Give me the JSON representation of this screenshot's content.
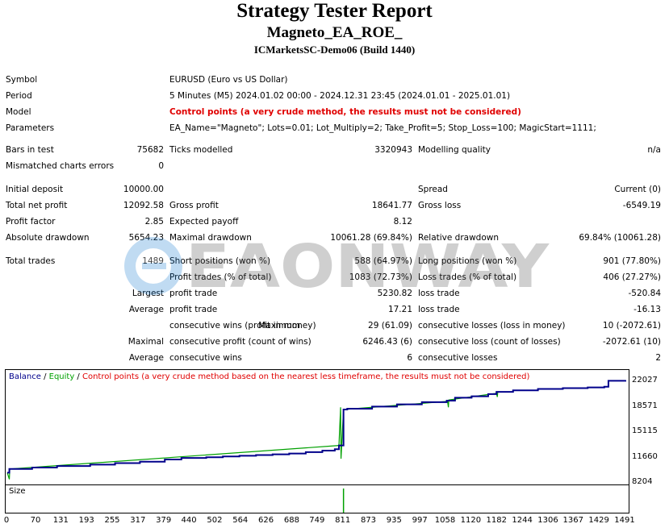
{
  "report": {
    "title": "Strategy Tester Report",
    "ea_name": "Magneto_EA_ROE_",
    "account": "ICMarketsSC-Demo06 (Build 1440)"
  },
  "settings": {
    "symbol_label": "Symbol",
    "symbol_value": "EURUSD (Euro vs US Dollar)",
    "period_label": "Period",
    "period_value": "5 Minutes (M5) 2024.01.02 00:00 - 2024.12.31 23:45 (2024.01.01 - 2025.01.01)",
    "model_label": "Model",
    "model_value": "Control points (a very crude method, the results must not be considered)",
    "parameters_label": "Parameters",
    "parameters_value": "EA_Name=\"Magneto\"; Lots=0.01; Lot_Multiply=2; Take_Profit=5; Stop_Loss=100; MagicStart=1111;"
  },
  "results": {
    "bars_in_test_label": "Bars in test",
    "bars_in_test": "75682",
    "ticks_modelled_label": "Ticks modelled",
    "ticks_modelled": "3320943",
    "modelling_quality_label": "Modelling quality",
    "modelling_quality": "n/a",
    "mismatched_label": "Mismatched charts errors",
    "mismatched": "0",
    "initial_deposit_label": "Initial deposit",
    "initial_deposit": "10000.00",
    "spread_label": "Spread",
    "spread": "Current (0)",
    "total_net_profit_label": "Total net profit",
    "total_net_profit": "12092.58",
    "gross_profit_label": "Gross profit",
    "gross_profit": "18641.77",
    "gross_loss_label": "Gross loss",
    "gross_loss": "-6549.19",
    "profit_factor_label": "Profit factor",
    "profit_factor": "2.85",
    "expected_payoff_label": "Expected payoff",
    "expected_payoff": "8.12",
    "absolute_drawdown_label": "Absolute drawdown",
    "absolute_drawdown": "5654.23",
    "maximal_drawdown_label": "Maximal drawdown",
    "maximal_drawdown": "10061.28 (69.84%)",
    "relative_drawdown_label": "Relative drawdown",
    "relative_drawdown": "69.84% (10061.28)",
    "total_trades_label": "Total trades",
    "total_trades": "1489",
    "short_positions_label": "Short positions (won %)",
    "short_positions": "588 (64.97%)",
    "long_positions_label": "Long positions (won %)",
    "long_positions": "901 (77.80%)",
    "profit_trades_label": "Profit trades (% of total)",
    "profit_trades": "1083 (72.73%)",
    "loss_trades_label": "Loss trades (% of total)",
    "loss_trades": "406 (27.27%)",
    "largest_label": "Largest",
    "largest_profit_label": "profit trade",
    "largest_profit": "5230.82",
    "largest_loss_label": "loss trade",
    "largest_loss": "-520.84",
    "average_label": "Average",
    "average_profit_label": "profit trade",
    "average_profit": "17.21",
    "average_loss_label": "loss trade",
    "average_loss": "-16.13",
    "maximum_label": "Maximum",
    "max_cons_wins_label": "consecutive wins (profit in money)",
    "max_cons_wins": "29 (61.09)",
    "max_cons_losses_label": "consecutive losses (loss in money)",
    "max_cons_losses": "10 (-2072.61)",
    "maximal_label": "Maximal",
    "maximal_cons_profit_label": "consecutive profit (count of wins)",
    "maximal_cons_profit": "6246.43 (6)",
    "maximal_cons_loss_label": "consecutive loss (count of losses)",
    "maximal_cons_loss": "-2072.61 (10)",
    "average2_label": "Average",
    "avg_cons_wins_label": "consecutive wins",
    "avg_cons_wins": "6",
    "avg_cons_losses_label": "consecutive losses",
    "avg_cons_losses": "2"
  },
  "watermark": "EAONWAY",
  "chart": {
    "legend_balance": "Balance",
    "legend_sep1": " / ",
    "legend_equity": "Equity",
    "legend_sep2": " / ",
    "legend_note": "Control points (a very crude method based on the nearest less timeframe, the results must not be considered)",
    "size_label": "Size",
    "colors": {
      "balance": "#00008b",
      "equity": "#00a000",
      "note": "#e00000",
      "size_bar": "#00a000"
    }
  },
  "chart_data": {
    "type": "line",
    "y_ticks": [
      "22027",
      "18571",
      "15115",
      "11660",
      "8204"
    ],
    "x_ticks": [
      "0",
      "70",
      "131",
      "193",
      "255",
      "317",
      "379",
      "440",
      "502",
      "564",
      "626",
      "688",
      "749",
      "811",
      "873",
      "935",
      "997",
      "1058",
      "1120",
      "1182",
      "1244",
      "1306",
      "1367",
      "1429",
      "1491"
    ],
    "ylim": [
      8204,
      22027
    ],
    "xlim": [
      0,
      1491
    ],
    "series": [
      {
        "name": "Balance",
        "x": [
          0,
          5,
          60,
          120,
          200,
          260,
          320,
          380,
          420,
          480,
          520,
          560,
          600,
          640,
          680,
          720,
          760,
          790,
          800,
          811,
          820,
          880,
          940,
          1000,
          1060,
          1080,
          1120,
          1160,
          1180,
          1220,
          1280,
          1340,
          1400,
          1440,
          1450,
          1491
        ],
        "y": [
          9700,
          10200,
          10400,
          10600,
          10800,
          11000,
          11200,
          11500,
          11700,
          11800,
          11900,
          12000,
          12100,
          12200,
          12300,
          12500,
          12700,
          12900,
          13400,
          18300,
          18400,
          18700,
          19000,
          19300,
          19500,
          19900,
          20100,
          20400,
          20700,
          20900,
          21100,
          21200,
          21300,
          21400,
          22200,
          22300
        ]
      },
      {
        "name": "Equity",
        "x": [
          0,
          5,
          6,
          800,
          804,
          805,
          811,
          812,
          1062,
          1064,
          1065,
          1180,
          1182,
          1183
        ],
        "y": [
          9700,
          8800,
          10200,
          13400,
          18600,
          11600,
          18300,
          18300,
          19400,
          18600,
          19600,
          20500,
          20000,
          20600
        ]
      }
    ],
    "size_bar": {
      "x": 811,
      "y": 1.0
    }
  }
}
